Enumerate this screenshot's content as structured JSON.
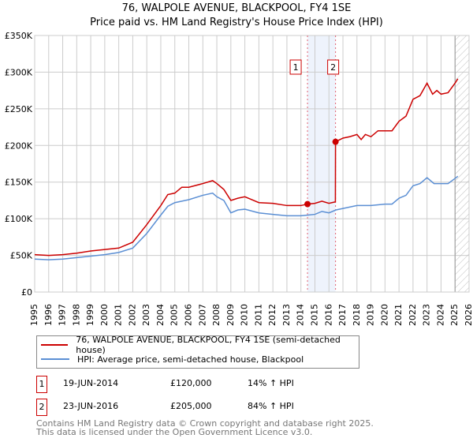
{
  "title": "76, WALPOLE AVENUE, BLACKPOOL, FY4 1SE",
  "subtitle": "Price paid vs. HM Land Registry's House Price Index (HPI)",
  "chart_data": {
    "type": "line",
    "xlim": [
      1995,
      2026
    ],
    "ylim": [
      0,
      350000
    ],
    "yticks": [
      0,
      50000,
      100000,
      150000,
      200000,
      250000,
      300000,
      350000
    ],
    "ytick_labels": [
      "£0",
      "£50K",
      "£100K",
      "£150K",
      "£200K",
      "£250K",
      "£300K",
      "£350K"
    ],
    "xticks": [
      1995,
      1996,
      1997,
      1998,
      1999,
      2000,
      2001,
      2002,
      2003,
      2004,
      2005,
      2006,
      2007,
      2008,
      2009,
      2010,
      2011,
      2012,
      2013,
      2014,
      2015,
      2016,
      2017,
      2018,
      2019,
      2020,
      2021,
      2022,
      2023,
      2024,
      2025,
      2026
    ],
    "grid": true,
    "forecast_hatch_from": 2025.0,
    "shaded_band": [
      2014.47,
      2016.47
    ],
    "series": [
      {
        "name": "76, WALPOLE AVENUE, BLACKPOOL, FY4 1SE (semi-detached house)",
        "color": "#cc0000",
        "x": [
          1995,
          1996,
          1997,
          1998,
          1999,
          2000,
          2001,
          2002,
          2003,
          2004,
          2004.5,
          2005,
          2005.5,
          2006,
          2007,
          2007.7,
          2008,
          2008.5,
          2009,
          2009.5,
          2010,
          2011,
          2012,
          2013,
          2014,
          2014.47,
          2015,
          2015.5,
          2016,
          2016.46,
          2016.47,
          2017,
          2017.5,
          2018,
          2018.3,
          2018.6,
          2019,
          2019.5,
          2020,
          2020.5,
          2021,
          2021.5,
          2022,
          2022.5,
          2023,
          2023.4,
          2023.7,
          2024,
          2024.5,
          2025,
          2025.2
        ],
        "y": [
          51000,
          50000,
          51000,
          53000,
          56000,
          58000,
          60000,
          68000,
          92000,
          118000,
          133000,
          135000,
          143000,
          143000,
          148000,
          152000,
          148000,
          140000,
          125000,
          128000,
          130000,
          122000,
          121000,
          118000,
          118000,
          120000,
          121000,
          124000,
          121000,
          123000,
          205000,
          210000,
          212000,
          215000,
          208000,
          215000,
          212000,
          220000,
          220000,
          220000,
          233000,
          240000,
          263000,
          268000,
          285000,
          270000,
          275000,
          270000,
          272000,
          285000,
          291000
        ]
      },
      {
        "name": "HPI: Average price, semi-detached house, Blackpool",
        "color": "#5b8fd4",
        "x": [
          1995,
          1996,
          1997,
          1998,
          1999,
          2000,
          2001,
          2002,
          2003,
          2004,
          2004.5,
          2005,
          2006,
          2007,
          2007.7,
          2008,
          2008.5,
          2009,
          2009.5,
          2010,
          2011,
          2012,
          2013,
          2014,
          2014.5,
          2015,
          2015.5,
          2016,
          2016.5,
          2017,
          2018,
          2019,
          2020,
          2020.5,
          2021,
          2021.5,
          2022,
          2022.5,
          2023,
          2023.5,
          2024,
          2024.5,
          2025,
          2025.2
        ],
        "y": [
          45000,
          44000,
          45000,
          47000,
          49000,
          51000,
          54000,
          60000,
          80000,
          105000,
          117000,
          122000,
          126000,
          132000,
          135000,
          130000,
          125000,
          108000,
          112000,
          113000,
          108000,
          106000,
          104000,
          104000,
          105000,
          106000,
          110000,
          108000,
          112000,
          114000,
          118000,
          118000,
          120000,
          120000,
          128000,
          132000,
          145000,
          148000,
          156000,
          148000,
          148000,
          148000,
          155000,
          158000
        ]
      }
    ],
    "sales": [
      {
        "label": "1",
        "x": 2014.47,
        "y": 120000
      },
      {
        "label": "2",
        "x": 2016.47,
        "y": 205000
      }
    ]
  },
  "legend": [
    "76, WALPOLE AVENUE, BLACKPOOL, FY4 1SE (semi-detached house)",
    "HPI: Average price, semi-detached house, Blackpool"
  ],
  "transactions": [
    {
      "num": "1",
      "date": "19-JUN-2014",
      "price": "£120,000",
      "hpi": "14% ↑ HPI"
    },
    {
      "num": "2",
      "date": "23-JUN-2016",
      "price": "£205,000",
      "hpi": "84% ↑ HPI"
    }
  ],
  "footer": [
    "Contains HM Land Registry data © Crown copyright and database right 2025.",
    "This data is licensed under the Open Government Licence v3.0."
  ]
}
